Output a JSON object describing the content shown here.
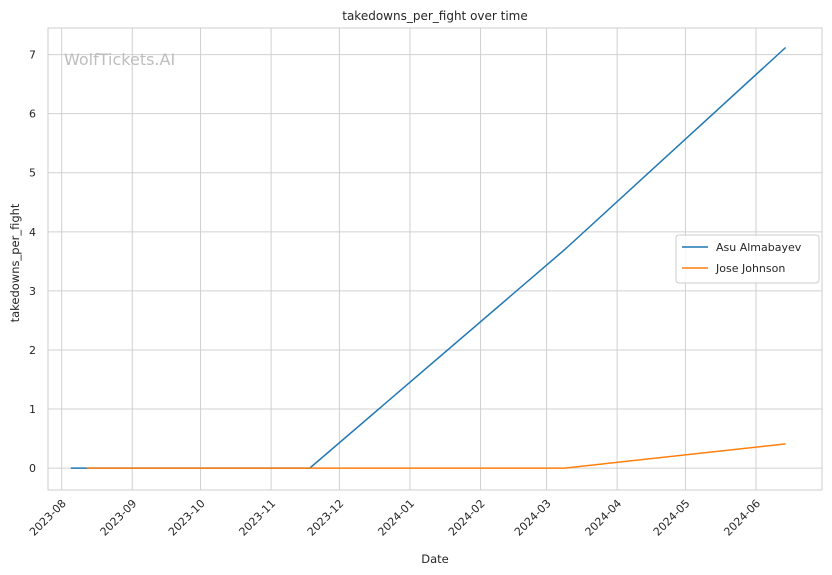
{
  "chart_data": {
    "type": "line",
    "title": "takedowns_per_fight over time",
    "xlabel": "Date",
    "ylabel": "takedowns_per_fight",
    "watermark": "WolfTickets.AI",
    "x_ticks": [
      "2023-08",
      "2023-09",
      "2023-10",
      "2023-11",
      "2023-12",
      "2024-01",
      "2024-02",
      "2024-03",
      "2024-04",
      "2024-05",
      "2024-06"
    ],
    "y_ticks": [
      "0",
      "1",
      "2",
      "3",
      "4",
      "5",
      "6",
      "7"
    ],
    "xlim": [
      "2023-07-26",
      "2024-06-30"
    ],
    "ylim": [
      -0.37,
      7.45
    ],
    "grid": true,
    "legend_position": "center-right",
    "series": [
      {
        "name": "Asu Almabayev",
        "color": "#1f77b4",
        "points": [
          {
            "x": "2023-08-05",
            "y": 0
          },
          {
            "x": "2023-11-18",
            "y": 0
          },
          {
            "x": "2024-03-09",
            "y": 3.7
          },
          {
            "x": "2024-06-14",
            "y": 7.12
          }
        ]
      },
      {
        "name": "Jose Johnson",
        "color": "#ff7f0e",
        "points": [
          {
            "x": "2023-08-12",
            "y": 0
          },
          {
            "x": "2024-03-09",
            "y": 0
          },
          {
            "x": "2024-06-14",
            "y": 0.41
          }
        ]
      }
    ]
  }
}
